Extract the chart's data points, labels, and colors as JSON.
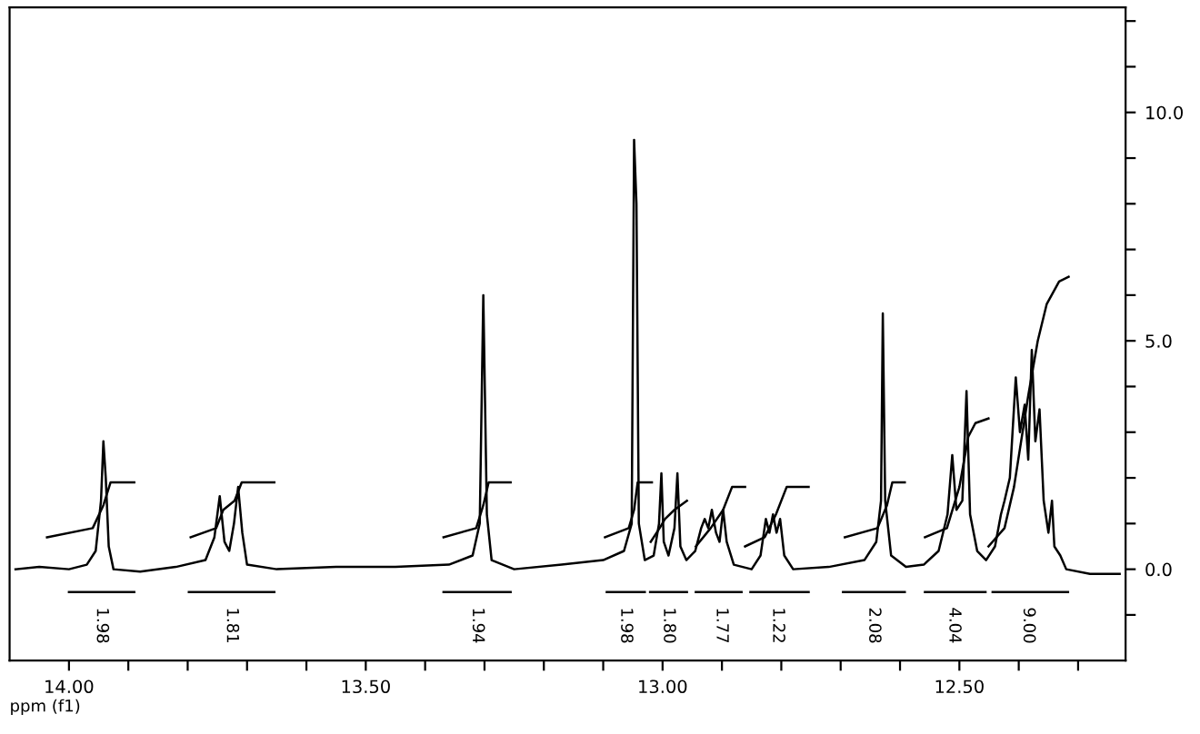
{
  "chart_data": {
    "type": "line",
    "xlabel": "ppm (f1)",
    "xlim": [
      14.1,
      12.22
    ],
    "ylim": [
      -2.0,
      12.3
    ],
    "xticks": [
      {
        "value": 14.0,
        "label": "14.00"
      },
      {
        "value": 13.9,
        "label": null
      },
      {
        "value": 13.8,
        "label": null
      },
      {
        "value": 13.7,
        "label": null
      },
      {
        "value": 13.6,
        "label": null
      },
      {
        "value": 13.5,
        "label": "13.50"
      },
      {
        "value": 13.4,
        "label": null
      },
      {
        "value": 13.3,
        "label": null
      },
      {
        "value": 13.2,
        "label": null
      },
      {
        "value": 13.1,
        "label": null
      },
      {
        "value": 13.0,
        "label": "13.00"
      },
      {
        "value": 12.9,
        "label": null
      },
      {
        "value": 12.8,
        "label": null
      },
      {
        "value": 12.7,
        "label": null
      },
      {
        "value": 12.6,
        "label": null
      },
      {
        "value": 12.5,
        "label": "12.50"
      },
      {
        "value": 12.4,
        "label": null
      },
      {
        "value": 12.3,
        "label": null
      }
    ],
    "yticks": [
      {
        "value": -1,
        "label": null
      },
      {
        "value": 0,
        "label": "0.0"
      },
      {
        "value": 1,
        "label": null
      },
      {
        "value": 2,
        "label": null
      },
      {
        "value": 3,
        "label": null
      },
      {
        "value": 4,
        "label": null
      },
      {
        "value": 5,
        "label": "5.0"
      },
      {
        "value": 6,
        "label": null
      },
      {
        "value": 7,
        "label": null
      },
      {
        "value": 8,
        "label": null
      },
      {
        "value": 9,
        "label": null
      },
      {
        "value": 10,
        "label": "10.0"
      },
      {
        "value": 11,
        "label": null
      },
      {
        "value": 12,
        "label": null
      }
    ],
    "grid": false,
    "legend": false,
    "marker": "none",
    "line_style": "solid",
    "series": [
      {
        "color": "#000000",
        "x": [
          14.09,
          14.05,
          14.0,
          13.97,
          13.955,
          13.946,
          13.942,
          13.938,
          13.933,
          13.925,
          13.88,
          13.82,
          13.77,
          13.755,
          13.746,
          13.738,
          13.73,
          13.722,
          13.715,
          13.708,
          13.7,
          13.65,
          13.55,
          13.45,
          13.36,
          13.32,
          13.308,
          13.302,
          13.296,
          13.288,
          13.25,
          13.17,
          13.1,
          13.065,
          13.052,
          13.048,
          13.044,
          13.04,
          13.03,
          13.015,
          13.006,
          13.002,
          12.998,
          12.99,
          12.98,
          12.975,
          12.97,
          12.96,
          12.945,
          12.935,
          12.929,
          12.923,
          12.917,
          12.91,
          12.904,
          12.898,
          12.892,
          12.88,
          12.85,
          12.835,
          12.826,
          12.82,
          12.814,
          12.808,
          12.802,
          12.795,
          12.78,
          12.72,
          12.66,
          12.64,
          12.632,
          12.629,
          12.625,
          12.615,
          12.59,
          12.56,
          12.535,
          12.52,
          12.512,
          12.505,
          12.495,
          12.488,
          12.482,
          12.47,
          12.455,
          12.44,
          12.43,
          12.424,
          12.415,
          12.405,
          12.398,
          12.39,
          12.384,
          12.378,
          12.372,
          12.365,
          12.358,
          12.35,
          12.344,
          12.34,
          12.33,
          12.32,
          12.28,
          12.23
        ],
        "values": [
          0.0,
          0.05,
          0.0,
          0.1,
          0.4,
          1.5,
          2.8,
          2.0,
          0.5,
          0.0,
          -0.05,
          0.05,
          0.2,
          0.7,
          1.6,
          0.6,
          0.4,
          1.0,
          1.8,
          0.8,
          0.1,
          0.0,
          0.05,
          0.05,
          0.1,
          0.3,
          1.0,
          6.0,
          1.2,
          0.2,
          0.0,
          0.1,
          0.2,
          0.4,
          1.0,
          9.4,
          8.0,
          1.0,
          0.2,
          0.3,
          1.0,
          2.1,
          0.6,
          0.3,
          0.9,
          2.1,
          0.5,
          0.2,
          0.4,
          0.9,
          1.1,
          0.9,
          1.3,
          0.8,
          0.6,
          1.3,
          0.6,
          0.1,
          0.0,
          0.3,
          1.1,
          0.8,
          1.2,
          0.8,
          1.1,
          0.3,
          0.0,
          0.05,
          0.2,
          0.6,
          1.5,
          5.6,
          1.5,
          0.3,
          0.05,
          0.1,
          0.4,
          1.2,
          2.5,
          1.3,
          1.5,
          3.9,
          1.2,
          0.4,
          0.2,
          0.5,
          1.2,
          1.5,
          2.0,
          4.2,
          3.0,
          3.6,
          2.4,
          4.8,
          2.8,
          3.5,
          1.5,
          0.8,
          1.5,
          0.5,
          0.3,
          0.0,
          -0.1,
          -0.1
        ]
      },
      {
        "color": "#000000",
        "x": [
          14.037,
          13.96,
          13.942,
          13.93,
          13.89
        ],
        "values": [
          0.7,
          0.9,
          1.4,
          1.9,
          1.9
        ]
      },
      {
        "color": "#000000",
        "x": [
          13.795,
          13.752,
          13.74,
          13.721,
          13.709,
          13.654
        ],
        "values": [
          0.7,
          0.9,
          1.3,
          1.5,
          1.9,
          1.9
        ]
      },
      {
        "color": "#000000",
        "x": [
          13.369,
          13.314,
          13.302,
          13.293,
          13.256
        ],
        "values": [
          0.7,
          0.9,
          1.4,
          1.9,
          1.9
        ]
      },
      {
        "color": "#000000",
        "x": [
          13.097,
          13.057,
          13.048,
          13.042,
          13.018
        ],
        "values": [
          0.7,
          0.9,
          1.3,
          1.9,
          1.9
        ]
      },
      {
        "color": "#000000",
        "x": [
          13.02,
          13.005,
          12.996,
          12.98,
          12.959
        ],
        "values": [
          0.6,
          0.9,
          1.1,
          1.3,
          1.5
        ]
      },
      {
        "color": "#000000",
        "x": [
          12.944,
          12.919,
          12.898,
          12.883,
          12.861
        ],
        "values": [
          0.5,
          0.9,
          1.3,
          1.8,
          1.8
        ]
      },
      {
        "color": "#000000",
        "x": [
          12.861,
          12.828,
          12.809,
          12.791,
          12.754
        ],
        "values": [
          0.5,
          0.7,
          1.2,
          1.8,
          1.8
        ]
      },
      {
        "color": "#000000",
        "x": [
          12.693,
          12.638,
          12.622,
          12.613,
          12.592
        ],
        "values": [
          0.7,
          0.9,
          1.4,
          1.9,
          1.9
        ]
      },
      {
        "color": "#000000",
        "x": [
          12.558,
          12.521,
          12.5,
          12.485,
          12.473,
          12.451
        ],
        "values": [
          0.7,
          0.9,
          1.8,
          2.9,
          3.2,
          3.3
        ]
      },
      {
        "color": "#000000",
        "x": [
          12.451,
          12.424,
          12.408,
          12.384,
          12.368,
          12.353,
          12.332,
          12.316
        ],
        "values": [
          0.5,
          0.9,
          1.8,
          3.8,
          5.0,
          5.8,
          6.3,
          6.4
        ]
      },
      {
        "color": "#000000",
        "x": [
          14.0,
          13.89
        ],
        "values": [
          -0.5,
          -0.5
        ]
      },
      {
        "color": "#000000",
        "x": [
          13.798,
          13.654
        ],
        "values": [
          -0.5,
          -0.5
        ]
      },
      {
        "color": "#000000",
        "x": [
          13.369,
          13.256
        ],
        "values": [
          -0.5,
          -0.5
        ]
      },
      {
        "color": "#000000",
        "x": [
          13.094,
          13.03
        ],
        "values": [
          -0.5,
          -0.5
        ]
      },
      {
        "color": "#000000",
        "x": [
          13.021,
          12.959
        ],
        "values": [
          -0.5,
          -0.5
        ]
      },
      {
        "color": "#000000",
        "x": [
          12.944,
          12.867
        ],
        "values": [
          -0.5,
          -0.5
        ]
      },
      {
        "color": "#000000",
        "x": [
          12.852,
          12.754
        ],
        "values": [
          -0.5,
          -0.5
        ]
      },
      {
        "color": "#000000",
        "x": [
          12.696,
          12.592
        ],
        "values": [
          -0.5,
          -0.5
        ]
      },
      {
        "color": "#000000",
        "x": [
          12.558,
          12.456
        ],
        "values": [
          -0.5,
          -0.5
        ]
      },
      {
        "color": "#000000",
        "x": [
          12.444,
          12.317
        ],
        "values": [
          -0.5,
          -0.5
        ]
      }
    ],
    "annotations": [
      {
        "text": "1.98",
        "x": 13.945,
        "y": -0.5
      },
      {
        "text": "1.81",
        "x": 13.726,
        "y": -0.5
      },
      {
        "text": "1.94",
        "x": 13.312,
        "y": -0.5
      },
      {
        "text": "1.98",
        "x": 13.062,
        "y": -0.5
      },
      {
        "text": "1.80",
        "x": 12.99,
        "y": -0.5
      },
      {
        "text": "1.77",
        "x": 12.901,
        "y": -0.5
      },
      {
        "text": "1.22",
        "x": 12.806,
        "y": -0.5
      },
      {
        "text": "2.08",
        "x": 12.644,
        "y": -0.5
      },
      {
        "text": "4.04",
        "x": 12.509,
        "y": -0.5
      },
      {
        "text": "9.00",
        "x": 12.384,
        "y": -0.5
      }
    ]
  }
}
